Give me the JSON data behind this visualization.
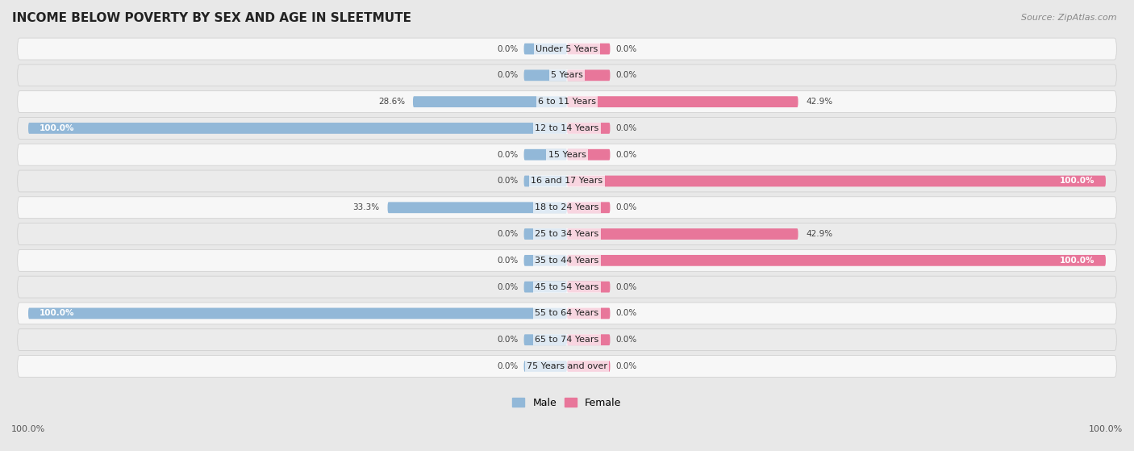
{
  "title": "INCOME BELOW POVERTY BY SEX AND AGE IN SLEETMUTE",
  "source": "Source: ZipAtlas.com",
  "categories": [
    "Under 5 Years",
    "5 Years",
    "6 to 11 Years",
    "12 to 14 Years",
    "15 Years",
    "16 and 17 Years",
    "18 to 24 Years",
    "25 to 34 Years",
    "35 to 44 Years",
    "45 to 54 Years",
    "55 to 64 Years",
    "65 to 74 Years",
    "75 Years and over"
  ],
  "male_values": [
    0.0,
    0.0,
    28.6,
    100.0,
    0.0,
    0.0,
    33.3,
    0.0,
    0.0,
    0.0,
    100.0,
    0.0,
    0.0
  ],
  "female_values": [
    0.0,
    0.0,
    42.9,
    0.0,
    0.0,
    100.0,
    0.0,
    42.9,
    100.0,
    0.0,
    0.0,
    0.0,
    0.0
  ],
  "male_color": "#92b8d8",
  "female_color": "#e8769a",
  "male_label": "Male",
  "female_label": "Female",
  "bar_height": 0.42,
  "xlim": 100.0,
  "bg_color": "#e8e8e8",
  "row_light": "#f7f7f7",
  "row_dark": "#ebebeb",
  "title_fontsize": 11,
  "val_fontsize": 7.5,
  "cat_fontsize": 8,
  "legend_fontsize": 9,
  "source_fontsize": 8
}
